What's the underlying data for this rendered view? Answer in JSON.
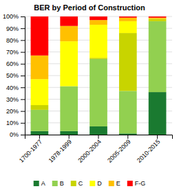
{
  "chart_data": {
    "type": "bar",
    "stacked": true,
    "title": "BER by Period of Construction",
    "categories": [
      "1700-1977",
      "1978-1999",
      "2000-2004",
      "2005-2009",
      "2010-2015"
    ],
    "series": [
      {
        "name": "A",
        "color": "#1a7a30",
        "values": [
          3,
          3,
          7,
          1,
          36
        ]
      },
      {
        "name": "B",
        "color": "#92d050",
        "values": [
          18,
          38,
          57,
          36,
          60
        ]
      },
      {
        "name": "C",
        "color": "#c8d400",
        "values": [
          4,
          0,
          1,
          49,
          2
        ]
      },
      {
        "name": "D",
        "color": "#ffff00",
        "values": [
          22,
          38,
          28,
          10,
          0
        ]
      },
      {
        "name": "E",
        "color": "#ffc000",
        "values": [
          20,
          13,
          4,
          3,
          1
        ]
      },
      {
        "name": "F-G",
        "color": "#ff0000",
        "values": [
          33,
          8,
          3,
          1,
          1
        ]
      }
    ],
    "ylim": [
      0,
      100
    ],
    "yticks": [
      {
        "value": 0,
        "label": "0%"
      },
      {
        "value": 10,
        "label": "10%"
      },
      {
        "value": 20,
        "label": "20%"
      },
      {
        "value": 30,
        "label": "30%"
      },
      {
        "value": 40,
        "label": "40%"
      },
      {
        "value": 50,
        "label": "50%"
      },
      {
        "value": 60,
        "label": "60%"
      },
      {
        "value": 70,
        "label": "70%"
      },
      {
        "value": 80,
        "label": "80%"
      },
      {
        "value": 90,
        "label": "90%"
      },
      {
        "value": 100,
        "label": "100%"
      }
    ],
    "grid": true,
    "legend": "bottom"
  }
}
